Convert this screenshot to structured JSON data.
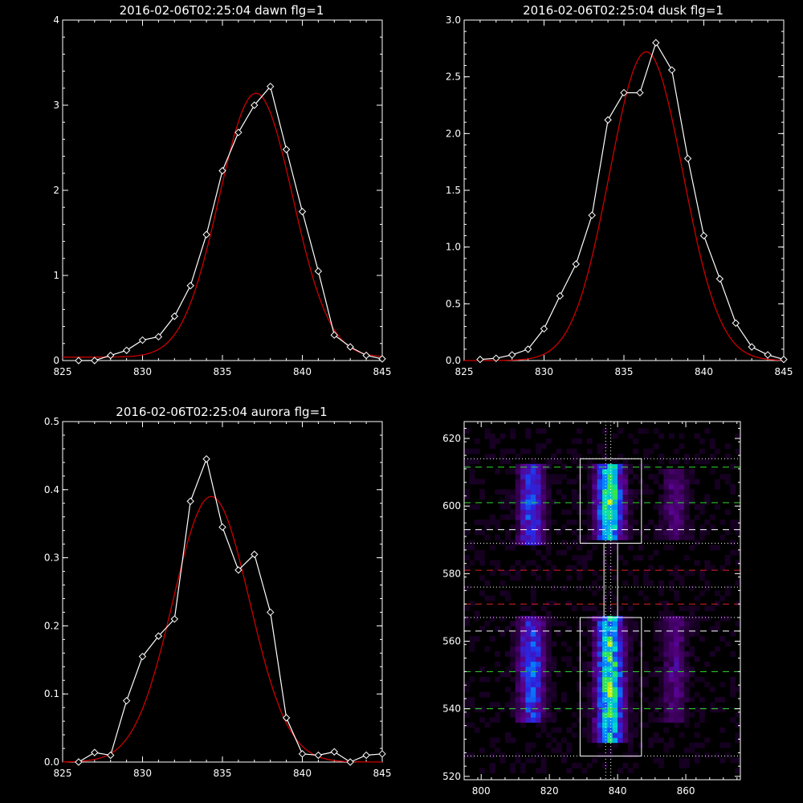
{
  "colors": {
    "background": "#000000",
    "axes": "#ffffff",
    "observed": "#ffffff",
    "fit": "#cc0000"
  },
  "chart_data": [
    {
      "type": "line",
      "title": "2016-02-06T02:25:04 dawn flg=1",
      "xlim": [
        825,
        845
      ],
      "ylim": [
        0,
        4
      ],
      "xticks": [
        "825",
        "830",
        "835",
        "840",
        "845"
      ],
      "yticks": [
        "0",
        "1",
        "2",
        "3",
        "4"
      ],
      "series": [
        {
          "role": "observed",
          "marker": "diamond",
          "x": [
            826,
            827,
            828,
            829,
            830,
            831,
            832,
            833,
            834,
            835,
            836,
            837,
            838,
            839,
            840,
            841,
            842,
            843,
            844,
            845
          ],
          "y": [
            0.0,
            0.0,
            0.06,
            0.12,
            0.24,
            0.28,
            0.52,
            0.88,
            1.48,
            2.23,
            2.68,
            3.0,
            3.22,
            2.48,
            1.75,
            1.05,
            0.3,
            0.16,
            0.06,
            0.02
          ]
        },
        {
          "role": "fit",
          "model": "gaussian",
          "center": 837.1,
          "sigma": 2.3,
          "peak": 3.1,
          "offset": 0.04
        }
      ]
    },
    {
      "type": "line",
      "title": "2016-02-06T02:25:04 dusk flg=1",
      "xlim": [
        825,
        845
      ],
      "ylim": [
        0,
        3.0
      ],
      "xticks": [
        "825",
        "830",
        "835",
        "840",
        "845"
      ],
      "yticks": [
        "0.0",
        "0.5",
        "1.0",
        "1.5",
        "2.0",
        "2.5",
        "3.0"
      ],
      "series": [
        {
          "role": "observed",
          "marker": "diamond",
          "x": [
            826,
            827,
            828,
            829,
            830,
            831,
            832,
            833,
            834,
            835,
            836,
            837,
            838,
            839,
            840,
            841,
            842,
            843,
            844,
            845
          ],
          "y": [
            0.01,
            0.02,
            0.05,
            0.1,
            0.28,
            0.57,
            0.85,
            1.28,
            2.12,
            2.36,
            2.36,
            2.8,
            2.56,
            1.78,
            1.1,
            0.72,
            0.33,
            0.12,
            0.05,
            0.01
          ]
        },
        {
          "role": "fit",
          "model": "gaussian",
          "center": 836.4,
          "sigma": 2.3,
          "peak": 2.72,
          "offset": 0.0
        }
      ]
    },
    {
      "type": "line",
      "title": "2016-02-06T02:25:04 aurora flg=1",
      "xlim": [
        825,
        845
      ],
      "ylim": [
        0,
        0.5
      ],
      "xticks": [
        "825",
        "830",
        "835",
        "840",
        "845"
      ],
      "yticks": [
        "0.0",
        "0.1",
        "0.2",
        "0.3",
        "0.4",
        "0.5"
      ],
      "series": [
        {
          "role": "observed",
          "marker": "diamond",
          "x": [
            826,
            827,
            828,
            829,
            830,
            831,
            832,
            833,
            834,
            835,
            836,
            837,
            838,
            839,
            840,
            841,
            842,
            843,
            844,
            845
          ],
          "y": [
            0.0,
            0.014,
            0.01,
            0.09,
            0.155,
            0.185,
            0.21,
            0.383,
            0.445,
            0.345,
            0.282,
            0.305,
            0.22,
            0.065,
            0.012,
            0.01,
            0.015,
            0.0,
            0.01,
            0.012
          ]
        },
        {
          "role": "fit",
          "model": "gaussian",
          "center": 834.3,
          "sigma": 2.4,
          "peak": 0.39,
          "offset": 0.0
        }
      ]
    },
    {
      "type": "heatmap",
      "title": "",
      "xlim": [
        795,
        876
      ],
      "ylim": [
        519,
        625
      ],
      "xticks": [
        "800",
        "820",
        "840",
        "860"
      ],
      "yticks": [
        "520",
        "540",
        "560",
        "580",
        "600",
        "620"
      ],
      "emission_columns": [
        {
          "x_center": 814,
          "rows": [
            [
              588,
              612
            ],
            [
              535,
              567
            ]
          ],
          "strength": 0.55
        },
        {
          "x_center": 837,
          "rows": [
            [
              590,
              612
            ],
            [
              530,
              567
            ]
          ],
          "strength": 1.0
        },
        {
          "x_center": 856,
          "rows": [
            [
              590,
              610
            ],
            [
              535,
              567
            ]
          ],
          "strength": 0.25
        }
      ],
      "boxes": [
        {
          "x": [
            829,
            847
          ],
          "y": [
            589,
            614
          ]
        },
        {
          "x": [
            836,
            840
          ],
          "y": [
            567,
            589
          ]
        },
        {
          "x": [
            829,
            847
          ],
          "y": [
            526,
            567
          ]
        }
      ],
      "green_dashed_y": [
        611.5,
        601,
        551,
        540
      ],
      "white_dashed_y": [
        593,
        563
      ],
      "red_dashed_y": [
        581,
        571
      ],
      "dotted_y": [
        614,
        589,
        576,
        567,
        526
      ],
      "dotted_x": [
        836.5,
        838
      ]
    }
  ]
}
